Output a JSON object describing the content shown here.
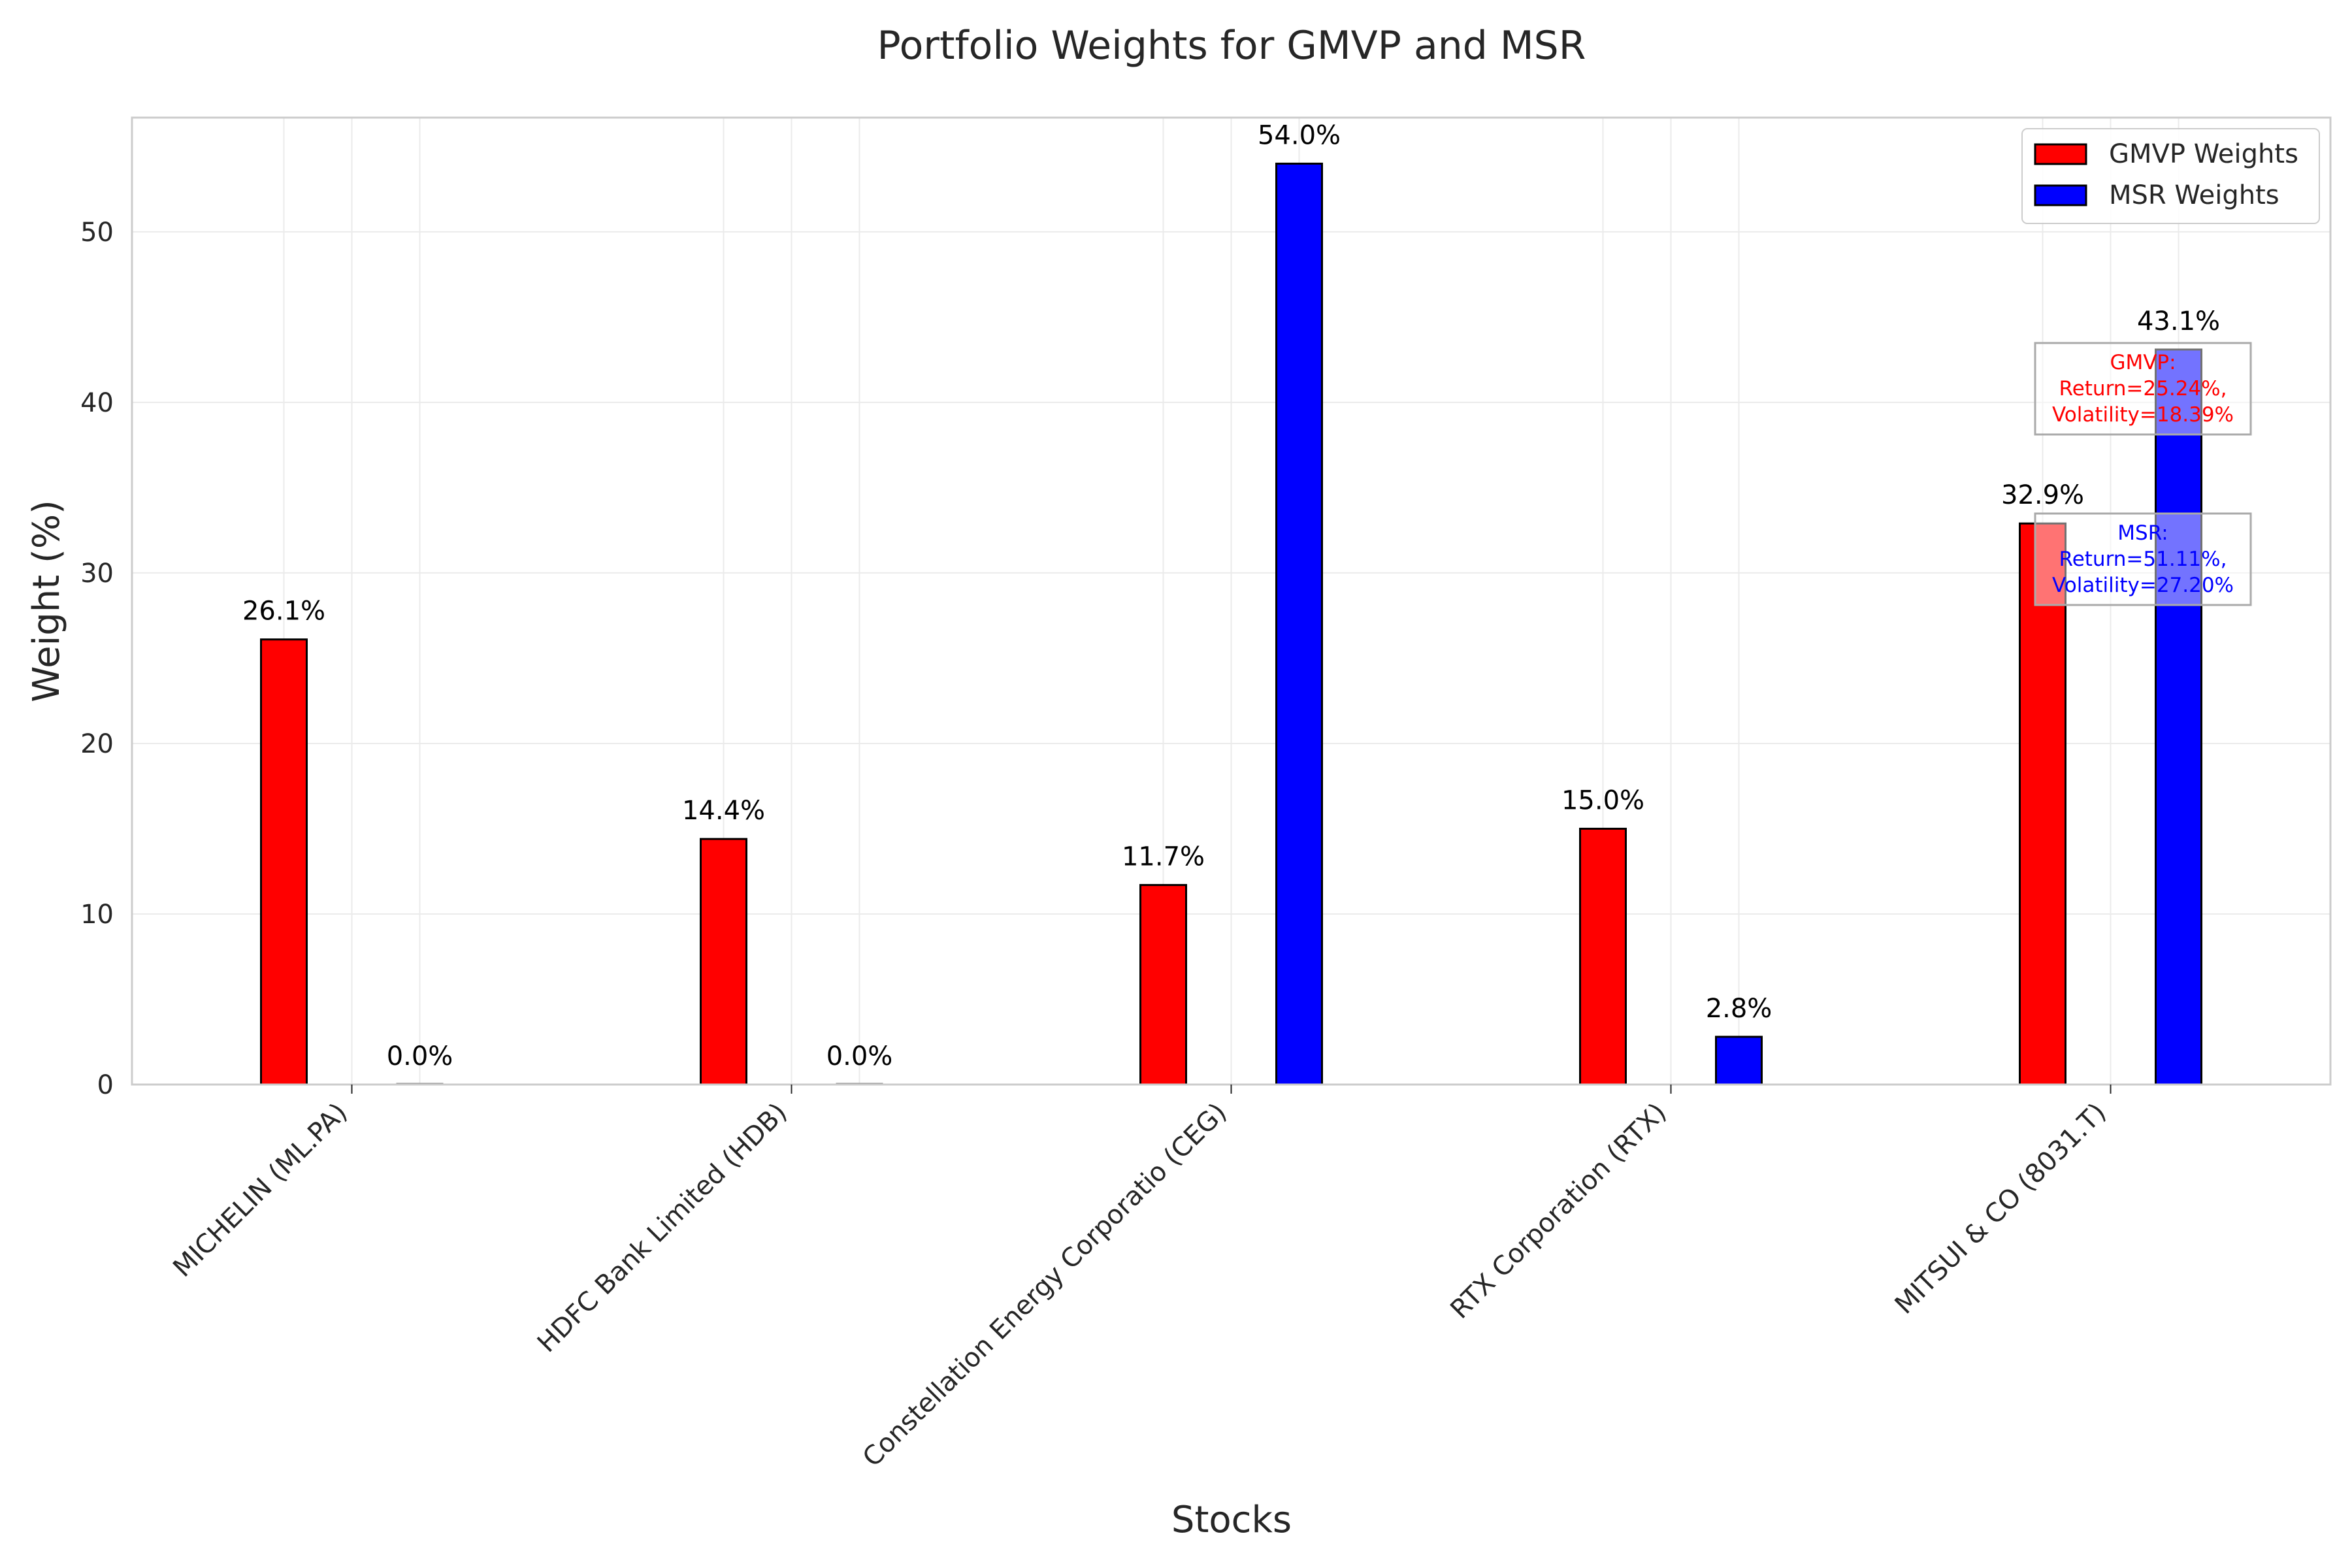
{
  "chart_data": {
    "type": "bar",
    "title": "Portfolio Weights for GMVP and MSR",
    "xlabel": "Stocks",
    "ylabel": "Weight (%)",
    "categories": [
      "MICHELIN (ML.PA)",
      "HDFC Bank Limited (HDB)",
      "Constellation Energy Corporatio (CEG)",
      "RTX Corporation (RTX)",
      "MITSUI & CO (8031.T)"
    ],
    "series": [
      {
        "name": "GMVP Weights",
        "color": "#ff0000",
        "values": [
          26.1,
          14.4,
          11.7,
          15.0,
          32.9
        ],
        "labels": [
          "26.1%",
          "14.4%",
          "11.7%",
          "15.0%",
          "32.9%"
        ]
      },
      {
        "name": "MSR Weights",
        "color": "#0000ff",
        "values": [
          0.0,
          0.0,
          54.0,
          2.8,
          43.1
        ],
        "labels": [
          "0.0%",
          "0.0%",
          "54.0%",
          "2.8%",
          "43.1%"
        ]
      }
    ],
    "ylim": [
      0,
      56.7
    ],
    "yticks": [
      "0",
      "10",
      "20",
      "30",
      "40",
      "50"
    ],
    "grid": true,
    "legend_position": "top-right",
    "annotations": [
      {
        "series": "GMVP",
        "color": "#ff0000",
        "lines": [
          "GMVP:",
          "Return=25.24%,",
          "Volatility=18.39%"
        ]
      },
      {
        "series": "MSR",
        "color": "#0000ff",
        "lines": [
          "MSR:",
          "Return=51.11%,",
          "Volatility=27.20%"
        ]
      }
    ]
  }
}
